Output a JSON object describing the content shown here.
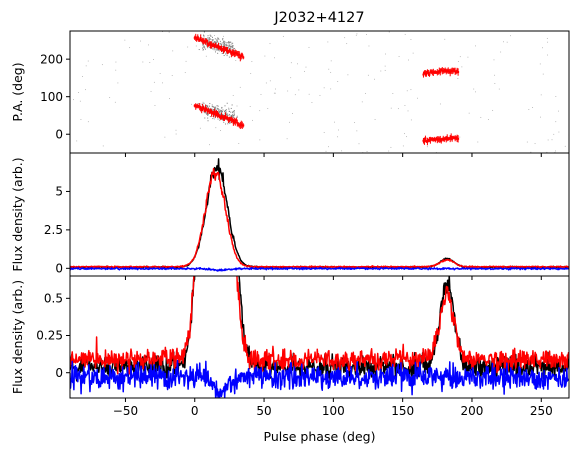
{
  "chart_data": {
    "type": "line",
    "title": "J2032+4127",
    "xlabel": "Pulse phase (deg)",
    "xlim": [
      -90,
      270
    ],
    "xticks": [
      -50,
      0,
      50,
      100,
      150,
      200,
      250
    ],
    "panels": [
      {
        "id": "pa",
        "ylabel": "P.A. (deg)",
        "ylim": [
          -50,
          275
        ],
        "yticks": [
          0,
          100,
          200
        ],
        "series": [
          {
            "color": "#808080",
            "kind": "scatter",
            "segments": [
              {
                "x0": 5,
                "x1": 28,
                "y0": 250,
                "y1": 225,
                "spread": 10
              },
              {
                "x0": 5,
                "x1": 28,
                "y0": 70,
                "y1": 45,
                "spread": 10
              }
            ]
          },
          {
            "color": "#ff0000",
            "kind": "errorbar",
            "segments": [
              {
                "x0": 0,
                "x1": 35,
                "y0": 257,
                "y1": 205
              },
              {
                "x0": 0,
                "x1": 35,
                "y0": 77,
                "y1": 25
              },
              {
                "x0": 165,
                "x1": 190,
                "y0": 163,
                "y1": 170
              },
              {
                "x0": 165,
                "x1": 190,
                "y0": -17,
                "y1": -10
              }
            ]
          }
        ]
      },
      {
        "id": "full",
        "ylabel": "Flux density (arb.)",
        "ylim": [
          -0.5,
          7.5
        ],
        "yticks": [
          0.0,
          2.5,
          5.0
        ],
        "series": [
          {
            "color": "#000000",
            "kind": "profile",
            "baseline": 0.08,
            "noise": 0.02,
            "components": [
              {
                "center": 16,
                "width": 7.5,
                "amp": 6.5
              },
              {
                "center": 182,
                "width": 5,
                "amp": 0.55
              }
            ]
          },
          {
            "color": "#ff0000",
            "kind": "profile",
            "baseline": 0.1,
            "noise": 0.02,
            "components": [
              {
                "center": 15,
                "width": 7.2,
                "amp": 6.25
              },
              {
                "center": 182,
                "width": 5,
                "amp": 0.45
              }
            ]
          },
          {
            "color": "#0000ff",
            "kind": "profile",
            "baseline": -0.02,
            "noise": 0.03,
            "components": [
              {
                "center": 18,
                "width": 6,
                "amp": -0.1
              }
            ]
          }
        ]
      },
      {
        "id": "zoom",
        "ylabel": "Flux density (arb.)",
        "ylim": [
          -0.17,
          0.65
        ],
        "yticks": [
          0.0,
          0.25,
          0.5
        ],
        "series": [
          {
            "color": "#000000",
            "kind": "profile",
            "baseline": 0.04,
            "noise": 0.035,
            "components": [
              {
                "center": 16,
                "width": 7.5,
                "amp": 6.5
              },
              {
                "center": 182,
                "width": 5,
                "amp": 0.55
              }
            ]
          },
          {
            "color": "#ff0000",
            "kind": "profile",
            "baseline": 0.09,
            "noise": 0.035,
            "components": [
              {
                "center": 15,
                "width": 7.2,
                "amp": 6.25
              },
              {
                "center": 182,
                "width": 5,
                "amp": 0.45
              }
            ]
          },
          {
            "color": "#0000ff",
            "kind": "profile",
            "baseline": -0.03,
            "noise": 0.04,
            "components": [
              {
                "center": 18,
                "width": 6,
                "amp": -0.1
              }
            ]
          }
        ]
      }
    ]
  }
}
